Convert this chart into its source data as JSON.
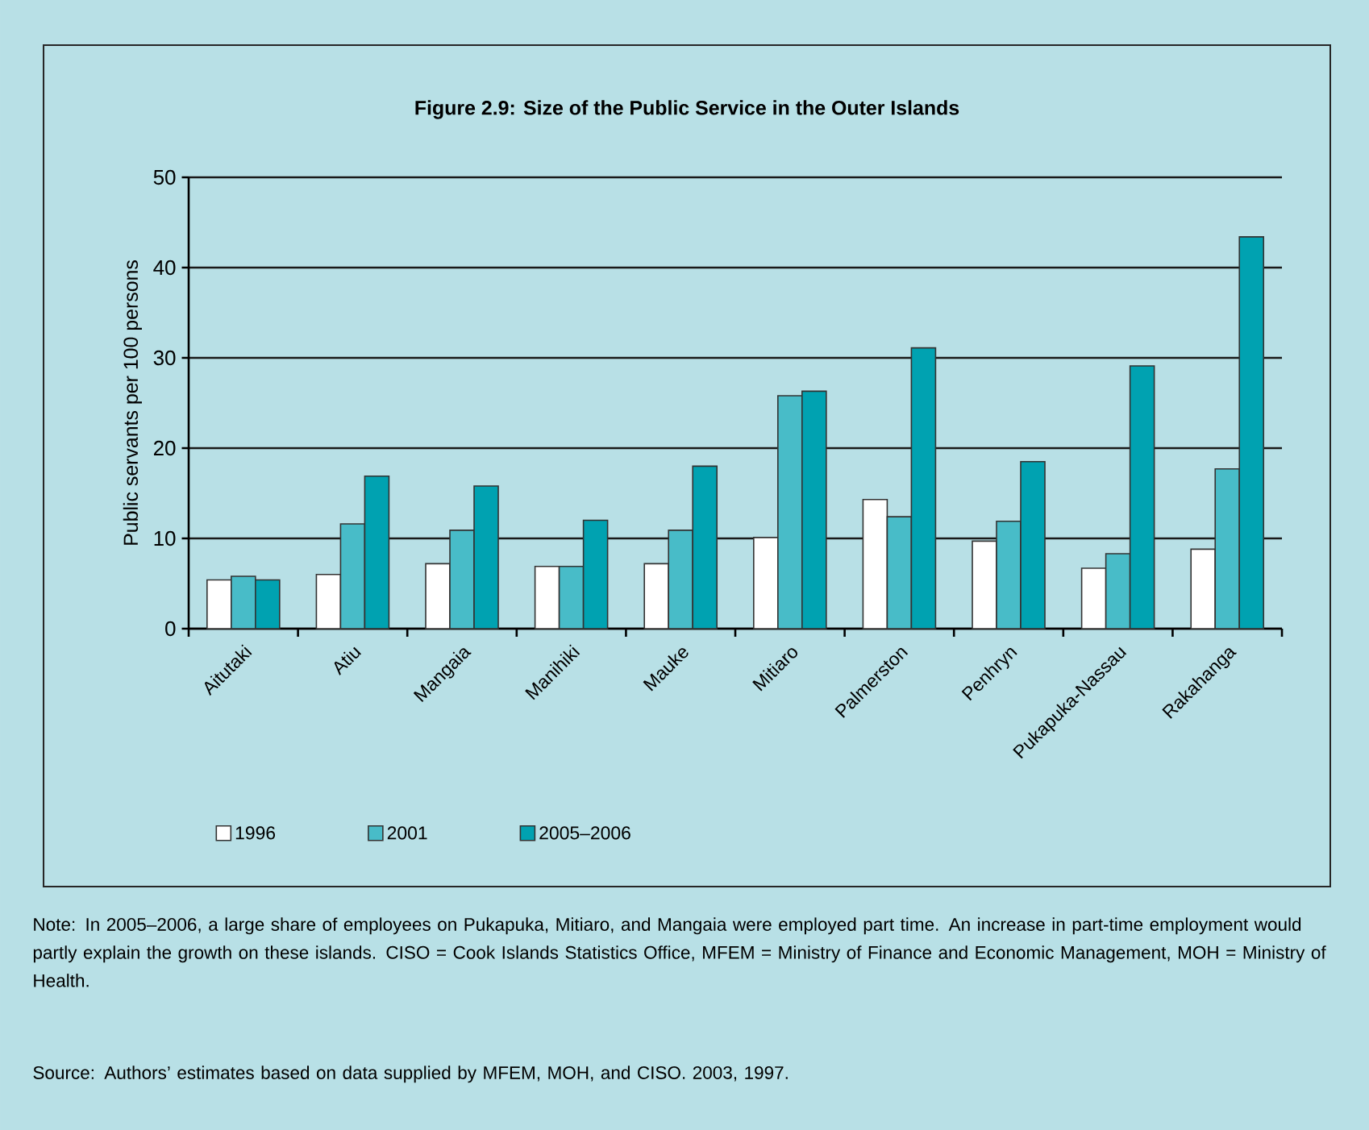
{
  "chart_data": {
    "type": "bar",
    "title": "Figure 2.9: Size of the Public Service in the Outer Islands",
    "ylabel": "Public servants per 100 persons",
    "categories": [
      "Aitutaki",
      "Atiu",
      "Mangaia",
      "Manihiki",
      "Mauke",
      "Mitiaro",
      "Palmerston",
      "Penhryn",
      "Pukapuka-Nassau",
      "Rakahanga"
    ],
    "series": [
      {
        "name": "1996",
        "color": "#ffffff",
        "values": [
          5.4,
          6.0,
          7.2,
          6.9,
          7.2,
          10.1,
          14.3,
          9.7,
          6.7,
          8.8
        ]
      },
      {
        "name": "2001",
        "color": "#48bcc8",
        "values": [
          5.8,
          11.6,
          10.9,
          6.9,
          10.9,
          25.8,
          12.4,
          11.9,
          8.3,
          17.7
        ]
      },
      {
        "name": "2005–2006",
        "color": "#00a2b1",
        "values": [
          5.4,
          16.9,
          15.8,
          12.0,
          18.0,
          26.3,
          31.1,
          18.5,
          29.1,
          43.4
        ]
      }
    ],
    "ylim": [
      0,
      50
    ],
    "yticks": [
      0,
      10,
      20,
      30,
      40,
      50
    ],
    "grid": "y",
    "legend": "bottom",
    "annotations": [
      "Note: In 2005–2006, a large share of employees on Pukapuka, Mitiaro, and Mangaia were employed part time. An increase in part-time employment would partly explain the growth on these islands. CISO = Cook Islands Statistics Office, MFEM = Ministry of Finance and Economic Management, MOH = Ministry of Health.",
      "Source: Authors’ estimates based on data supplied by MFEM, MOH, and CISO. 2003, 1997."
    ]
  }
}
